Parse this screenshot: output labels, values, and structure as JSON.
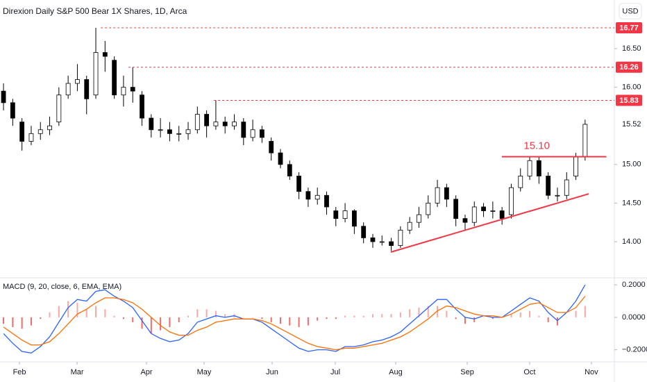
{
  "chart_data": [
    {
      "type": "candlestick",
      "title": "Direxion Daily S&P 500 Bear 1X Shares, 1D, Arca",
      "currency": "USD",
      "xlim": [
        -0.38,
        66.17
      ],
      "xticks": [
        {
          "value": 1.73,
          "label": "Feb"
        },
        {
          "value": 7.97,
          "label": "Mar"
        },
        {
          "value": 15.49,
          "label": "Apr"
        },
        {
          "value": 21.73,
          "label": "May"
        },
        {
          "value": 29.1,
          "label": "Jun"
        },
        {
          "value": 35.94,
          "label": "Jul"
        },
        {
          "value": 42.48,
          "label": "Aug"
        },
        {
          "value": 50.23,
          "label": "Sep"
        },
        {
          "value": 56.99,
          "label": "Oct"
        },
        {
          "value": 63.68,
          "label": "Nov"
        }
      ],
      "ylim": [
        13.55,
        17.13
      ],
      "yticks": [
        {
          "value": 14,
          "label": "14.00"
        },
        {
          "value": 14.5,
          "label": "14.50"
        },
        {
          "value": 15,
          "label": "15.00"
        },
        {
          "value": 16,
          "label": "16.00"
        },
        {
          "value": 16.5,
          "label": "16.50"
        }
      ],
      "last_price": {
        "value": 15.52,
        "label": "15.52"
      },
      "up_color": "#ffffff",
      "down_color": "#000000",
      "wick_color": "#000000",
      "open": [
        15.95,
        15.8,
        15.55,
        15.3,
        15.4,
        15.45,
        15.55,
        15.9,
        16.05,
        16.1,
        15.9,
        16.45,
        16.35,
        15.9,
        16.0,
        15.9,
        15.6,
        15.45,
        15.45,
        15.4,
        15.4,
        15.45,
        15.65,
        15.5,
        15.55,
        15.5,
        15.55,
        15.35,
        15.45,
        15.3,
        15.15,
        15.0,
        14.85,
        14.65,
        14.55,
        14.6,
        14.4,
        14.3,
        14.4,
        14.2,
        14.05,
        14.0,
        14.0,
        13.95,
        14.15,
        14.25,
        14.35,
        14.5,
        14.7,
        14.55,
        14.3,
        14.25,
        14.45,
        14.4,
        14.4,
        14.35,
        14.7,
        14.85,
        15.05,
        14.85,
        14.6,
        14.6,
        14.85,
        15.1
      ],
      "high": [
        16.05,
        15.85,
        15.6,
        15.5,
        15.55,
        15.62,
        16.0,
        16.15,
        16.3,
        16.15,
        16.77,
        16.6,
        16.4,
        16.15,
        16.26,
        15.95,
        15.65,
        15.6,
        15.55,
        15.5,
        15.55,
        15.75,
        15.7,
        15.83,
        15.62,
        15.65,
        15.6,
        15.58,
        15.5,
        15.35,
        15.2,
        15.05,
        14.9,
        14.7,
        14.7,
        14.65,
        14.45,
        14.5,
        14.42,
        14.25,
        14.1,
        14.08,
        14.05,
        14.2,
        14.32,
        14.45,
        14.6,
        14.8,
        14.75,
        14.6,
        14.35,
        14.52,
        14.5,
        14.52,
        14.45,
        14.75,
        14.95,
        15.1,
        15.1,
        14.9,
        14.7,
        14.9,
        15.15,
        15.58
      ],
      "low": [
        15.7,
        15.5,
        15.18,
        15.25,
        15.32,
        15.38,
        15.5,
        15.85,
        15.95,
        15.65,
        15.85,
        16.2,
        15.85,
        15.75,
        15.8,
        15.5,
        15.35,
        15.35,
        15.3,
        15.3,
        15.32,
        15.4,
        15.35,
        15.45,
        15.4,
        15.45,
        15.25,
        15.3,
        15.28,
        15.05,
        14.95,
        14.8,
        14.55,
        14.45,
        14.48,
        14.35,
        14.2,
        14.25,
        14.1,
        13.98,
        13.92,
        13.95,
        13.88,
        13.92,
        14.1,
        14.18,
        14.3,
        14.45,
        14.45,
        14.2,
        14.15,
        14.2,
        14.32,
        14.3,
        14.22,
        14.3,
        14.65,
        14.8,
        14.75,
        14.55,
        14.52,
        14.55,
        14.8,
        15.05
      ],
      "close": [
        15.8,
        15.6,
        15.3,
        15.4,
        15.45,
        15.5,
        15.9,
        16.05,
        16.1,
        15.85,
        16.45,
        16.4,
        15.9,
        16.0,
        15.95,
        15.6,
        15.45,
        15.45,
        15.4,
        15.4,
        15.45,
        15.65,
        15.5,
        15.55,
        15.5,
        15.55,
        15.35,
        15.45,
        15.35,
        15.15,
        15.0,
        14.85,
        14.65,
        14.55,
        14.6,
        14.45,
        14.3,
        14.4,
        14.2,
        14.05,
        14.0,
        14.0,
        13.95,
        14.15,
        14.25,
        14.35,
        14.5,
        14.7,
        14.55,
        14.3,
        14.25,
        14.45,
        14.4,
        14.4,
        14.3,
        14.7,
        14.85,
        15.05,
        14.85,
        14.6,
        14.6,
        14.8,
        15.1,
        15.52
      ],
      "levels": [
        {
          "value": 16.77,
          "label": "16.77",
          "x_start": 10.53
        },
        {
          "value": 16.26,
          "label": "16.26",
          "x_start": 13.53
        },
        {
          "value": 15.83,
          "label": "15.83",
          "x_start": 22.78
        }
      ],
      "level_color": "#f23645",
      "hline": {
        "value": 15.1,
        "label": "15.10",
        "x_start": 53.98,
        "x_end": 65.3,
        "color": "#f23645"
      },
      "trendline": {
        "x": [
          41.95,
          63.4
        ],
        "y": [
          13.865,
          14.62
        ],
        "color": "#f23645"
      }
    },
    {
      "type": "macd",
      "title": "MACD (9, 20, close, 6, EMA, EMA)",
      "ylim": [
        -0.27,
        0.235
      ],
      "yticks": [
        {
          "value": 0.2,
          "label": "0.2000"
        },
        {
          "value": 0,
          "label": "0.0000"
        },
        {
          "value": -0.2,
          "label": "−0.2000"
        }
      ],
      "series": [
        {
          "color": "#2962ff",
          "values": [
            -0.1,
            -0.16,
            -0.21,
            -0.22,
            -0.18,
            -0.12,
            -0.03,
            0.06,
            0.11,
            0.1,
            0.16,
            0.17,
            0.13,
            0.1,
            0.06,
            -0.02,
            -0.1,
            -0.13,
            -0.15,
            -0.14,
            -0.1,
            -0.03,
            -0.01,
            0.01,
            0.0,
            0.01,
            -0.01,
            -0.01,
            -0.03,
            -0.07,
            -0.11,
            -0.15,
            -0.19,
            -0.21,
            -0.2,
            -0.2,
            -0.21,
            -0.18,
            -0.18,
            -0.17,
            -0.15,
            -0.14,
            -0.12,
            -0.09,
            -0.04,
            0.01,
            0.06,
            0.11,
            0.11,
            0.05,
            0.0,
            -0.01,
            0.01,
            0.0,
            0.0,
            0.04,
            0.08,
            0.12,
            0.1,
            0.03,
            -0.02,
            0.03,
            0.1,
            0.2
          ]
        },
        {
          "color": "#ff6d00",
          "values": [
            -0.06,
            -0.1,
            -0.14,
            -0.17,
            -0.17,
            -0.15,
            -0.1,
            -0.04,
            0.02,
            0.05,
            0.09,
            0.12,
            0.12,
            0.11,
            0.09,
            0.05,
            0.0,
            -0.05,
            -0.09,
            -0.11,
            -0.11,
            -0.08,
            -0.06,
            -0.03,
            -0.02,
            -0.01,
            -0.01,
            -0.01,
            -0.02,
            -0.04,
            -0.07,
            -0.1,
            -0.13,
            -0.16,
            -0.18,
            -0.19,
            -0.2,
            -0.19,
            -0.19,
            -0.18,
            -0.17,
            -0.16,
            -0.14,
            -0.12,
            -0.09,
            -0.05,
            -0.01,
            0.04,
            0.07,
            0.06,
            0.04,
            0.02,
            0.01,
            0.01,
            0.0,
            0.02,
            0.05,
            0.08,
            0.09,
            0.06,
            0.03,
            0.03,
            0.06,
            0.13
          ]
        }
      ],
      "histogram": {
        "up_color": "#f7a8a6",
        "down_color": "#f26b6b",
        "values": [
          -0.04,
          -0.06,
          -0.07,
          -0.05,
          -0.01,
          0.03,
          0.07,
          0.1,
          0.09,
          0.05,
          0.07,
          0.05,
          0.01,
          -0.01,
          -0.03,
          -0.07,
          -0.1,
          -0.08,
          -0.06,
          -0.03,
          0.01,
          0.05,
          0.05,
          0.04,
          0.02,
          0.02,
          0.0,
          0.0,
          -0.01,
          -0.03,
          -0.04,
          -0.05,
          -0.06,
          -0.05,
          -0.02,
          -0.01,
          -0.01,
          0.01,
          0.01,
          0.01,
          0.02,
          0.02,
          0.02,
          0.03,
          0.05,
          0.06,
          0.07,
          0.07,
          0.04,
          -0.01,
          -0.04,
          -0.03,
          0.0,
          -0.01,
          0.0,
          0.02,
          0.03,
          0.04,
          0.01,
          -0.03,
          -0.05,
          0.0,
          0.04,
          0.07
        ]
      }
    }
  ]
}
